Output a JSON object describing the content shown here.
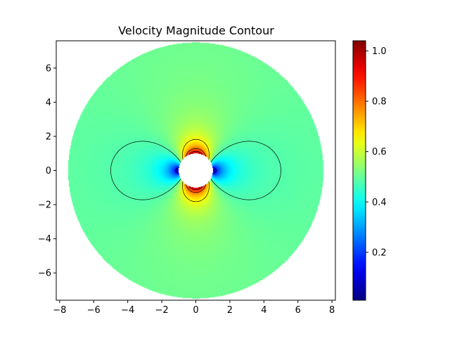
{
  "chart_data": {
    "type": "heatmap",
    "title": "Velocity Magnitude Contour",
    "xlabel": "",
    "ylabel": "",
    "xlim": [
      -8.2,
      8.2
    ],
    "ylim": [
      -7.6,
      7.6
    ],
    "x_ticks": [
      -8,
      -6,
      -4,
      -2,
      0,
      2,
      4,
      6,
      8
    ],
    "x_tick_labels": [
      "−8",
      "−6",
      "−4",
      "−2",
      "0",
      "2",
      "4",
      "6",
      "8"
    ],
    "y_ticks": [
      -6,
      -4,
      -2,
      0,
      2,
      4,
      6
    ],
    "y_tick_labels": [
      "−6",
      "−4",
      "−2",
      "0",
      "2",
      "4",
      "6"
    ],
    "grid": false,
    "colormap": "jet",
    "colorbar": {
      "range": [
        0.01,
        1.04
      ],
      "ticks": [
        0.2,
        0.4,
        0.6,
        0.8,
        1.0
      ],
      "tick_labels": [
        "0.2",
        "0.4",
        "0.6",
        "0.8",
        "1.0"
      ]
    },
    "domain": {
      "shape": "annulus",
      "center": [
        0,
        0
      ],
      "inner_radius": 1.0,
      "outer_radius": 7.5
    },
    "freestream_value": 0.5,
    "contour_levels": [
      0.15,
      0.48,
      0.65,
      0.8,
      0.9
    ]
  }
}
